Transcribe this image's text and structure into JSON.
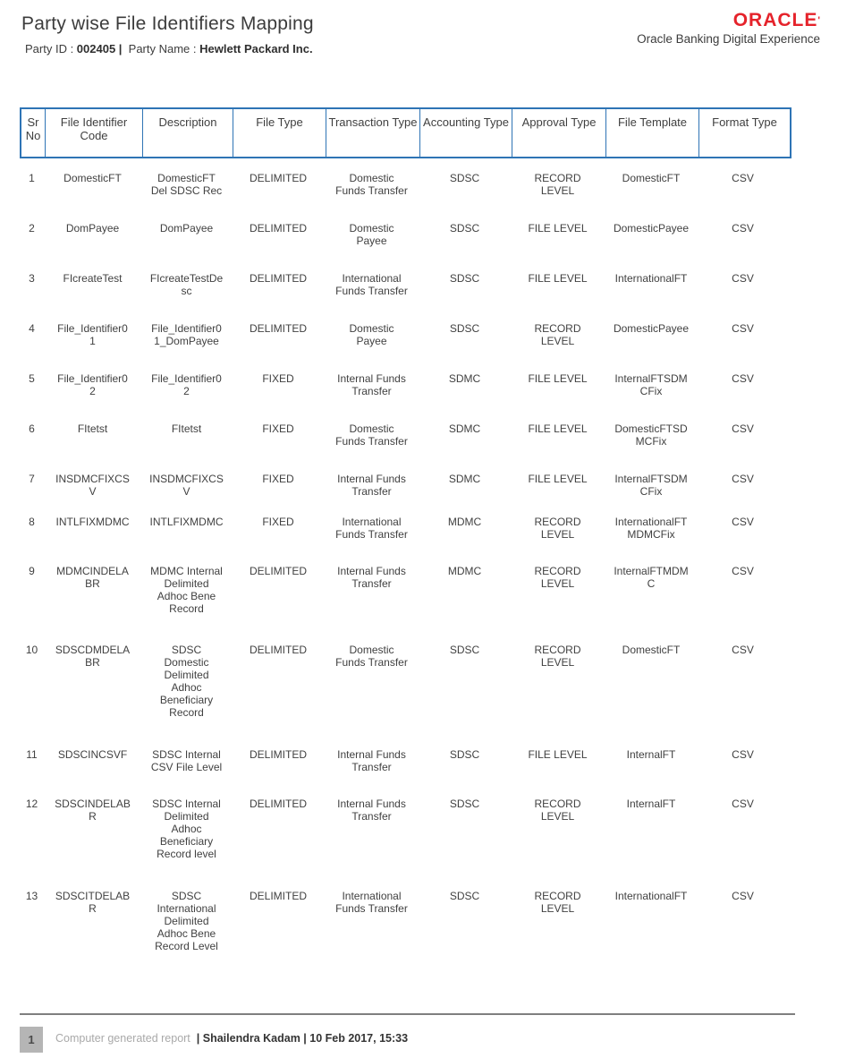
{
  "header": {
    "title": "Party wise File Identifiers Mapping",
    "party_id_label": "Party ID : ",
    "party_id_value": "002405 |",
    "party_name_label": "  Party Name : ",
    "party_name_value": "Hewlett Packard Inc.",
    "brand": {
      "logo_text": "ORACLE",
      "logo_mark": "'",
      "logo_color": "#e5232b",
      "tagline": "Oracle Banking Digital Experience"
    }
  },
  "table": {
    "border_color": "#2e74b5",
    "columns": [
      "Sr No",
      "File Identifier Code",
      "Description",
      "File Type",
      "Transaction Type",
      "Accounting Type",
      "Approval Type",
      "File Template",
      "Format Type"
    ],
    "rows": [
      {
        "sr": "1",
        "code": "DomesticFT",
        "description": "DomesticFT Del SDSC Rec",
        "file_type": "DELIMITED",
        "transaction_type": "Domestic Funds Transfer",
        "accounting_type": "SDSC",
        "approval_type": "RECORD LEVEL",
        "file_template": "DomesticFT",
        "format_type": "CSV"
      },
      {
        "sr": "2",
        "code": "DomPayee",
        "description": "DomPayee",
        "file_type": "DELIMITED",
        "transaction_type": "Domestic Payee",
        "accounting_type": "SDSC",
        "approval_type": "FILE LEVEL",
        "file_template": "DomesticPayee",
        "format_type": "CSV"
      },
      {
        "sr": "3",
        "code": "FIcreateTest",
        "description": "FIcreateTestDesc",
        "file_type": "DELIMITED",
        "transaction_type": "International Funds Transfer",
        "accounting_type": "SDSC",
        "approval_type": "FILE LEVEL",
        "file_template": "InternationalFT",
        "format_type": "CSV"
      },
      {
        "sr": "4",
        "code": "File_Identifier01",
        "description": "File_Identifier01_DomPayee",
        "file_type": "DELIMITED",
        "transaction_type": "Domestic Payee",
        "accounting_type": "SDSC",
        "approval_type": "RECORD LEVEL",
        "file_template": "DomesticPayee",
        "format_type": "CSV"
      },
      {
        "sr": "5",
        "code": "File_Identifier02",
        "description": "File_Identifier02",
        "file_type": "FIXED",
        "transaction_type": "Internal Funds Transfer",
        "accounting_type": "SDMC",
        "approval_type": "FILE LEVEL",
        "file_template": "InternalFTSDMCFix",
        "format_type": "CSV"
      },
      {
        "sr": "6",
        "code": "FItetst",
        "description": "FItetst",
        "file_type": "FIXED",
        "transaction_type": "Domestic Funds Transfer",
        "accounting_type": "SDMC",
        "approval_type": "FILE LEVEL",
        "file_template": "DomesticFTSDMCFix",
        "format_type": "CSV"
      },
      {
        "sr": "7",
        "code": "INSDMCFIXCSV",
        "description": "INSDMCFIXCSV",
        "file_type": "FIXED",
        "transaction_type": "Internal Funds Transfer",
        "accounting_type": "SDMC",
        "approval_type": "FILE LEVEL",
        "file_template": "InternalFTSDMCFix",
        "format_type": "CSV"
      },
      {
        "sr": "8",
        "code": "INTLFIXMDMC",
        "description": "INTLFIXMDMC",
        "file_type": "FIXED",
        "transaction_type": "International Funds Transfer",
        "accounting_type": "MDMC",
        "approval_type": "RECORD LEVEL",
        "file_template": "InternationalFTMDMCFix",
        "format_type": "CSV"
      },
      {
        "sr": "9",
        "code": "MDMCINDELABR",
        "description": "MDMC Internal Delimited Adhoc Bene Record",
        "file_type": "DELIMITED",
        "transaction_type": "Internal Funds Transfer",
        "accounting_type": "MDMC",
        "approval_type": "RECORD LEVEL",
        "file_template": "InternalFTMDMC",
        "format_type": "CSV"
      },
      {
        "sr": "10",
        "code": "SDSCDMDELABR",
        "description": "SDSC Domestic Delimited Adhoc Beneficiary Record",
        "file_type": "DELIMITED",
        "transaction_type": "Domestic Funds Transfer",
        "accounting_type": "SDSC",
        "approval_type": "RECORD LEVEL",
        "file_template": "DomesticFT",
        "format_type": "CSV"
      },
      {
        "sr": "11",
        "code": "SDSCINCSVF",
        "description": "SDSC Internal CSV File Level",
        "file_type": "DELIMITED",
        "transaction_type": "Internal Funds Transfer",
        "accounting_type": "SDSC",
        "approval_type": "FILE LEVEL",
        "file_template": "InternalFT",
        "format_type": "CSV"
      },
      {
        "sr": "12",
        "code": "SDSCINDELABR",
        "description": "SDSC Internal Delimited Adhoc Beneficiary Record level",
        "file_type": "DELIMITED",
        "transaction_type": "Internal Funds Transfer",
        "accounting_type": "SDSC",
        "approval_type": "RECORD LEVEL",
        "file_template": "InternalFT",
        "format_type": "CSV"
      },
      {
        "sr": "13",
        "code": "SDSCITDELABR",
        "description": "SDSC International Delimited Adhoc Bene Record Level",
        "file_type": "DELIMITED",
        "transaction_type": "International Funds Transfer",
        "accounting_type": "SDSC",
        "approval_type": "RECORD LEVEL",
        "file_template": "InternationalFT",
        "format_type": "CSV"
      }
    ]
  },
  "footer": {
    "page_number": "1",
    "generated_label": "Computer generated report",
    "meta": "| Shailendra Kadam | 10 Feb 2017, 15:33"
  }
}
